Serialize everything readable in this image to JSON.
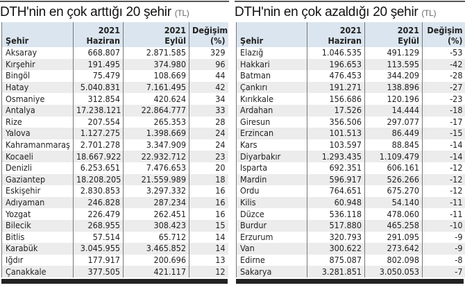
{
  "left": {
    "title": "DTH'nin en çok arttığı 20 şehir",
    "unit": "(TL)",
    "headers": [
      "Şehir",
      "2021 Haziran",
      "2021 Eylül",
      "Değişim (%)"
    ],
    "rows": [
      [
        "Aksaray",
        "668.807",
        "2.871.585",
        "329"
      ],
      [
        "Kırşehir",
        "191.495",
        "374.980",
        "96"
      ],
      [
        "Bingöl",
        "75.479",
        "108.669",
        "44"
      ],
      [
        "Hatay",
        "5.040.831",
        "7.161.495",
        "42"
      ],
      [
        "Osmaniye",
        "312.854",
        "420.624",
        "34"
      ],
      [
        "Antalya",
        "17.238.121",
        "22.864.777",
        "33"
      ],
      [
        "Rize",
        "207.554",
        "265.353",
        "28"
      ],
      [
        "Yalova",
        "1.127.275",
        "1.398.669",
        "24"
      ],
      [
        "Kahramanmaraş",
        "2.701.278",
        "3.347.909",
        "24"
      ],
      [
        "Kocaeli",
        "18.667.922",
        "22.932.712",
        "23"
      ],
      [
        "Denizli",
        "6.253.651",
        "7.476.653",
        "20"
      ],
      [
        "Gaziantep",
        "18.208.205",
        "21.559.989",
        "18"
      ],
      [
        "Eskişehir",
        "2.830.853",
        "3.297.332",
        "16"
      ],
      [
        "Adıyaman",
        "246.828",
        "287.234",
        "16"
      ],
      [
        "Yozgat",
        "226.479",
        "262.451",
        "16"
      ],
      [
        "Bilecik",
        "268.955",
        "308.423",
        "15"
      ],
      [
        "Bitlis",
        "57.514",
        "65.712",
        "14"
      ],
      [
        "Karabük",
        "3.045.955",
        "3.465.852",
        "14"
      ],
      [
        "Iğdır",
        "177.917",
        "200.696",
        "13"
      ],
      [
        "Çanakkale",
        "377.505",
        "421.117",
        "12"
      ]
    ]
  },
  "right": {
    "title": "DTH'nin en çok azaldığı 20 şehir",
    "unit": "(TL)",
    "headers": [
      "Şehir",
      "2021 Haziran",
      "2021 Eylül",
      "Değişim (%)"
    ],
    "rows": [
      [
        "Elazığ",
        "1.046.535",
        "491.129",
        "-53"
      ],
      [
        "Hakkari",
        "196.653",
        "113.595",
        "-42"
      ],
      [
        "Batman",
        "476.453",
        "344.209",
        "-28"
      ],
      [
        "Çankırı",
        "191.271",
        "138.896",
        "-27"
      ],
      [
        "Kırıkkale",
        "156.686",
        "120.196",
        "-23"
      ],
      [
        "Ardahan",
        "17.526",
        "14.444",
        "-18"
      ],
      [
        "Giresun",
        "356.506",
        "297.077",
        "-17"
      ],
      [
        "Erzincan",
        "101.513",
        "86.449",
        "-15"
      ],
      [
        "Kars",
        "103.597",
        "88.845",
        "-14"
      ],
      [
        "Diyarbakır",
        "1.293.435",
        "1.109.479",
        "-14"
      ],
      [
        "Isparta",
        "692.351",
        "606.161",
        "-12"
      ],
      [
        "Mardin",
        "596.917",
        "526.266",
        "-12"
      ],
      [
        "Ordu",
        "764.651",
        "675.270",
        "-12"
      ],
      [
        "Kilis",
        "60.948",
        "54.140",
        "-11"
      ],
      [
        "Düzce",
        "536.118",
        "478.060",
        "-11"
      ],
      [
        "Burdur",
        "517.880",
        "465.258",
        "-10"
      ],
      [
        "Erzurum",
        "320.793",
        "291.095",
        "-9"
      ],
      [
        "Van",
        "300.622",
        "273.642",
        "-9"
      ],
      [
        "Edirne",
        "875.087",
        "802.098",
        "-8"
      ],
      [
        "Sakarya",
        "3.281.851",
        "3.050.053",
        "-7"
      ]
    ]
  },
  "colors": {
    "header_bg": "#dbe5ef",
    "alt_row_bg": "#ececec",
    "rule": "#222222"
  }
}
